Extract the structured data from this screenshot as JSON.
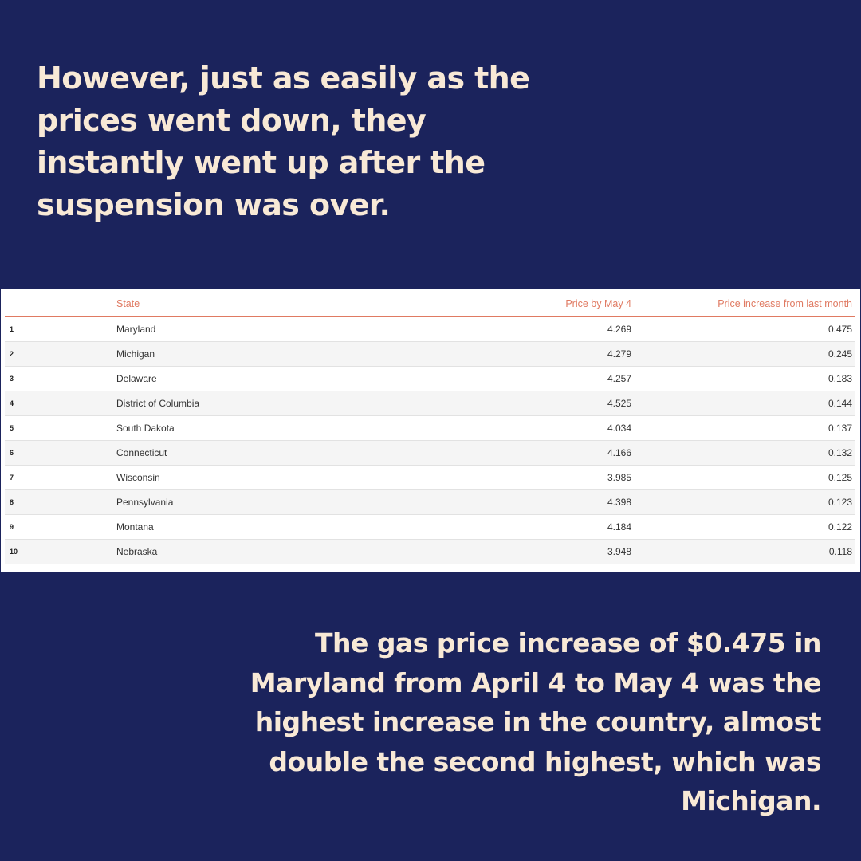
{
  "headline": "However, just as easily as the prices went down, they instantly went up after the suspension was over.",
  "table": {
    "headers": {
      "rank": "",
      "state": "State",
      "price": "Price by May 4",
      "increase": "Price increase from last month"
    },
    "rows": [
      {
        "rank": "1",
        "state": "Maryland",
        "price": "4.269",
        "increase": "0.475"
      },
      {
        "rank": "2",
        "state": "Michigan",
        "price": "4.279",
        "increase": "0.245"
      },
      {
        "rank": "3",
        "state": "Delaware",
        "price": "4.257",
        "increase": "0.183"
      },
      {
        "rank": "4",
        "state": "District of Columbia",
        "price": "4.525",
        "increase": "0.144"
      },
      {
        "rank": "5",
        "state": "South Dakota",
        "price": "4.034",
        "increase": "0.137"
      },
      {
        "rank": "6",
        "state": "Connecticut",
        "price": "4.166",
        "increase": "0.132"
      },
      {
        "rank": "7",
        "state": "Wisconsin",
        "price": "3.985",
        "increase": "0.125"
      },
      {
        "rank": "8",
        "state": "Pennsylvania",
        "price": "4.398",
        "increase": "0.123"
      },
      {
        "rank": "9",
        "state": "Montana",
        "price": "4.184",
        "increase": "0.122"
      },
      {
        "rank": "10",
        "state": "Nebraska",
        "price": "3.948",
        "increase": "0.118"
      }
    ]
  },
  "caption": "The gas price increase of $0.475 in Maryland from April 4 to May 4 was the highest increase in the country, almost double the second highest, which was Michigan.",
  "colors": {
    "background": "#1b235c",
    "text": "#f8e9d6",
    "header_accent": "#e07a62"
  }
}
